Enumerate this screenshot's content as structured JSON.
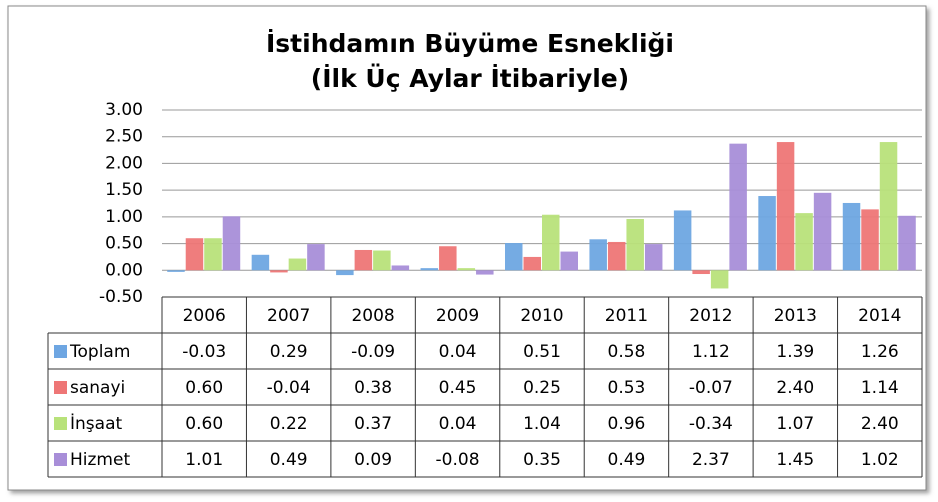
{
  "chart_data": {
    "type": "bar",
    "title": "İstihdamın Büyüme Esnekliği",
    "subtitle": "(İlk Üç Aylar İtibariyle)",
    "categories": [
      "2006",
      "2007",
      "2008",
      "2009",
      "2010",
      "2011",
      "2012",
      "2013",
      "2014"
    ],
    "series": [
      {
        "name": "Toplam",
        "color": "#6ea6e2",
        "values": [
          -0.03,
          0.29,
          -0.09,
          0.04,
          0.51,
          0.58,
          1.12,
          1.39,
          1.26
        ],
        "value_labels": [
          "-0.03",
          "0.29",
          "-0.09",
          "0.04",
          "0.51",
          "0.58",
          "1.12",
          "1.39",
          "1.26"
        ]
      },
      {
        "name": "sanayi",
        "color": "#ee7676",
        "values": [
          0.6,
          -0.04,
          0.38,
          0.45,
          0.25,
          0.53,
          -0.07,
          2.4,
          1.14
        ],
        "value_labels": [
          "0.60",
          "-0.04",
          "0.38",
          "0.45",
          "0.25",
          "0.53",
          "-0.07",
          "2.40",
          "1.14"
        ]
      },
      {
        "name": "İnşaat",
        "color": "#b8e27a",
        "values": [
          0.6,
          0.22,
          0.37,
          0.04,
          1.04,
          0.96,
          -0.34,
          1.07,
          2.4
        ],
        "value_labels": [
          "0.60",
          "0.22",
          "0.37",
          "0.04",
          "1.04",
          "0.96",
          "-0.34",
          "1.07",
          "2.40"
        ]
      },
      {
        "name": "Hizmet",
        "color": "#a88ed8",
        "values": [
          1.01,
          0.49,
          0.09,
          -0.08,
          0.35,
          0.49,
          2.37,
          1.45,
          1.02
        ],
        "value_labels": [
          "1.01",
          "0.49",
          "0.09",
          "-0.08",
          "0.35",
          "0.49",
          "2.37",
          "1.45",
          "1.02"
        ]
      }
    ],
    "ylim": [
      -0.5,
      3
    ],
    "yticks": [
      {
        "value": -0.5,
        "label": "-0.50"
      },
      {
        "value": 0,
        "label": "0.00"
      },
      {
        "value": 0.5,
        "label": "0.50"
      },
      {
        "value": 1,
        "label": "1.00"
      },
      {
        "value": 1.5,
        "label": "1.50"
      },
      {
        "value": 2,
        "label": "2.00"
      },
      {
        "value": 2.5,
        "label": "2.50"
      },
      {
        "value": 3,
        "label": "3.00"
      }
    ],
    "grid": true
  }
}
